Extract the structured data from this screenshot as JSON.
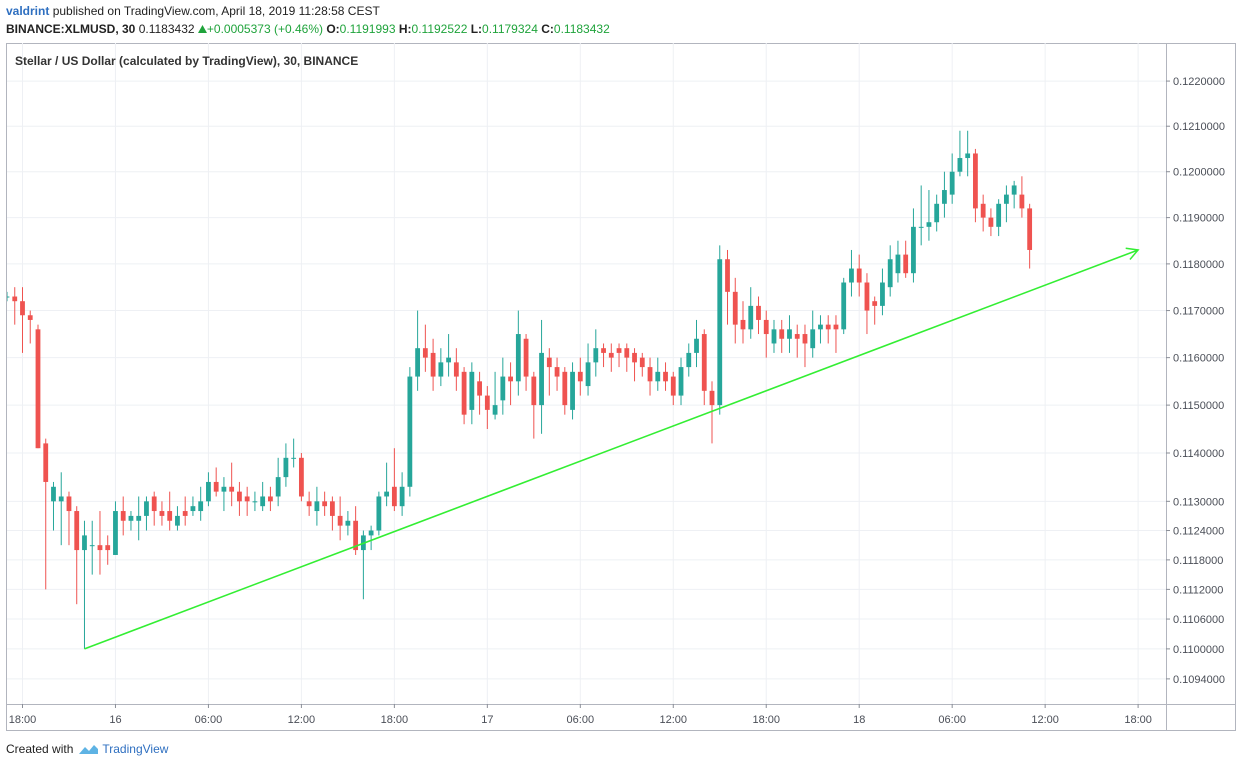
{
  "header": {
    "author": "valdrint",
    "published": "published on TradingView.com, April 18, 2019 11:28:58 CEST",
    "symbol": "BINANCE:XLMUSD, 30",
    "last": "0.1183432",
    "change": "+0.0005373 (+0.46%)",
    "ohlc": [
      {
        "label": "O:",
        "value": "0.1191993"
      },
      {
        "label": "H:",
        "value": "0.1192522"
      },
      {
        "label": "L:",
        "value": "0.1179324"
      },
      {
        "label": "C:",
        "value": "0.1183432"
      }
    ]
  },
  "footer": {
    "created": "Created with",
    "brand": "TradingView"
  },
  "chart_data": {
    "type": "candlestick",
    "title": "Stellar / US Dollar (calculated by TradingView), 30, BINANCE",
    "up_color": "#26a69a",
    "down_color": "#ef5350",
    "log_scale": true,
    "grid": true,
    "xlim": [
      0,
      149.6
    ],
    "ylim": [
      0.1089,
      0.12285
    ],
    "xticks": [
      {
        "value": 2,
        "label": "18:00"
      },
      {
        "value": 14,
        "label": "16"
      },
      {
        "value": 26,
        "label": "06:00"
      },
      {
        "value": 38,
        "label": "12:00"
      },
      {
        "value": 50,
        "label": "18:00"
      },
      {
        "value": 62,
        "label": "17"
      },
      {
        "value": 74,
        "label": "06:00"
      },
      {
        "value": 86,
        "label": "12:00"
      },
      {
        "value": 98,
        "label": "18:00"
      },
      {
        "value": 110,
        "label": "18"
      },
      {
        "value": 122,
        "label": "06:00"
      },
      {
        "value": 134,
        "label": "12:00"
      },
      {
        "value": 146,
        "label": "18:00"
      }
    ],
    "yticks": [
      {
        "value": 0.122,
        "label": "0.1220000"
      },
      {
        "value": 0.121,
        "label": "0.1210000"
      },
      {
        "value": 0.12,
        "label": "0.1200000"
      },
      {
        "value": 0.119,
        "label": "0.1190000"
      },
      {
        "value": 0.118,
        "label": "0.1180000"
      },
      {
        "value": 0.117,
        "label": "0.1170000"
      },
      {
        "value": 0.116,
        "label": "0.1160000"
      },
      {
        "value": 0.115,
        "label": "0.1150000"
      },
      {
        "value": 0.114,
        "label": "0.1140000"
      },
      {
        "value": 0.113,
        "label": "0.1130000"
      },
      {
        "value": 0.1124,
        "label": "0.1124000"
      },
      {
        "value": 0.1118,
        "label": "0.1118000"
      },
      {
        "value": 0.1112,
        "label": "0.1112000"
      },
      {
        "value": 0.1106,
        "label": "0.1106000"
      },
      {
        "value": 0.11,
        "label": "0.1100000"
      },
      {
        "value": 0.1094,
        "label": "0.1094000"
      }
    ],
    "open": [
      0.1173,
      0.1173,
      0.1172,
      0.1169,
      0.1166,
      0.1142,
      0.113,
      0.113,
      0.1131,
      0.1128,
      0.112,
      0.1121,
      0.1121,
      0.1121,
      0.1119,
      0.1128,
      0.1126,
      0.1126,
      0.1127,
      0.1131,
      0.1128,
      0.1128,
      0.1125,
      0.1128,
      0.1128,
      0.1128,
      0.113,
      0.1134,
      0.1132,
      0.1133,
      0.1132,
      0.1131,
      0.113,
      0.1129,
      0.1131,
      0.1131,
      0.1135,
      0.1139,
      0.1139,
      0.113,
      0.1128,
      0.113,
      0.113,
      0.1127,
      0.1125,
      0.1126,
      0.112,
      0.1123,
      0.1124,
      0.1131,
      0.1133,
      0.1129,
      0.1133,
      0.1156,
      0.1162,
      0.1161,
      0.1156,
      0.1159,
      0.1159,
      0.1157,
      0.1149,
      0.1155,
      0.1152,
      0.1148,
      0.1151,
      0.1156,
      0.1155,
      0.1164,
      0.1156,
      0.115,
      0.116,
      0.1158,
      0.1157,
      0.1149,
      0.1157,
      0.1154,
      0.1159,
      0.1162,
      0.1161,
      0.1162,
      0.1162,
      0.1161,
      0.116,
      0.1158,
      0.1155,
      0.1157,
      0.1156,
      0.1152,
      0.1158,
      0.1161,
      0.1165,
      0.1153,
      0.115,
      0.1181,
      0.1174,
      0.1168,
      0.1166,
      0.1171,
      0.1168,
      0.1163,
      0.1166,
      0.1164,
      0.1165,
      0.1165,
      0.1162,
      0.1166,
      0.1167,
      0.1167,
      0.1166,
      0.1176,
      0.1179,
      0.1176,
      0.1172,
      0.1171,
      0.1175,
      0.1178,
      0.1182,
      0.1178,
      0.1188,
      0.1188,
      0.1189,
      0.1193,
      0.1195,
      0.12,
      0.1203,
      0.1204,
      0.1193,
      0.119,
      0.1188,
      0.1193,
      0.1195,
      0.1195,
      0.1192
    ],
    "high": [
      0.1174,
      0.1175,
      0.1175,
      0.117,
      0.1167,
      0.1143,
      0.1134,
      0.1136,
      0.1132,
      0.1129,
      0.1126,
      0.1126,
      0.1128,
      0.1123,
      0.113,
      0.1131,
      0.1128,
      0.1131,
      0.1131,
      0.1132,
      0.113,
      0.1132,
      0.1129,
      0.1131,
      0.1131,
      0.1133,
      0.1136,
      0.1137,
      0.1135,
      0.1138,
      0.1134,
      0.1133,
      0.1132,
      0.1134,
      0.1133,
      0.1139,
      0.1142,
      0.1143,
      0.114,
      0.1132,
      0.1133,
      0.1132,
      0.1131,
      0.1131,
      0.1128,
      0.1129,
      0.1124,
      0.1125,
      0.1132,
      0.1138,
      0.1141,
      0.1136,
      0.1158,
      0.117,
      0.1167,
      0.1164,
      0.1162,
      0.1165,
      0.1162,
      0.1158,
      0.1159,
      0.1157,
      0.1154,
      0.1157,
      0.116,
      0.1159,
      0.117,
      0.1165,
      0.1157,
      0.1168,
      0.1162,
      0.116,
      0.1158,
      0.1159,
      0.116,
      0.1163,
      0.1166,
      0.1163,
      0.1163,
      0.1163,
      0.1163,
      0.1162,
      0.1161,
      0.116,
      0.116,
      0.1159,
      0.1157,
      0.116,
      0.1163,
      0.1168,
      0.1166,
      0.1155,
      0.1184,
      0.1183,
      0.1177,
      0.1172,
      0.1175,
      0.1173,
      0.117,
      0.1168,
      0.1168,
      0.1169,
      0.1167,
      0.1167,
      0.117,
      0.1169,
      0.1169,
      0.1169,
      0.1177,
      0.1183,
      0.1182,
      0.1178,
      0.1173,
      0.1179,
      0.1184,
      0.1185,
      0.1185,
      0.1192,
      0.1197,
      0.1196,
      0.1195,
      0.12,
      0.1204,
      0.1209,
      0.1209,
      0.1205,
      0.1195,
      0.1192,
      0.1194,
      0.1197,
      0.1198,
      0.1199,
      0.1193
    ],
    "low": [
      0.1172,
      0.1167,
      0.1161,
      0.1163,
      0.1141,
      0.1112,
      0.1124,
      0.1121,
      0.1121,
      0.1109,
      0.11,
      0.1115,
      0.1115,
      0.1117,
      0.1119,
      0.1123,
      0.1124,
      0.1122,
      0.1124,
      0.1125,
      0.1125,
      0.1124,
      0.1124,
      0.1125,
      0.1127,
      0.1126,
      0.1129,
      0.1131,
      0.1128,
      0.1129,
      0.1127,
      0.1127,
      0.1128,
      0.1128,
      0.1128,
      0.1129,
      0.1133,
      0.1137,
      0.113,
      0.1127,
      0.1125,
      0.1127,
      0.1124,
      0.1122,
      0.1123,
      0.1119,
      0.111,
      0.112,
      0.1123,
      0.1129,
      0.1128,
      0.1127,
      0.1131,
      0.1153,
      0.1157,
      0.1153,
      0.1154,
      0.1156,
      0.1153,
      0.1146,
      0.1146,
      0.1148,
      0.1145,
      0.1147,
      0.1148,
      0.115,
      0.1152,
      0.1153,
      0.1143,
      0.1144,
      0.1152,
      0.1153,
      0.1148,
      0.1147,
      0.1152,
      0.1152,
      0.1156,
      0.1158,
      0.1157,
      0.1158,
      0.1157,
      0.1155,
      0.1156,
      0.1152,
      0.1153,
      0.1153,
      0.115,
      0.115,
      0.1156,
      0.1158,
      0.115,
      0.1142,
      0.1148,
      0.1167,
      0.1163,
      0.1163,
      0.1164,
      0.1165,
      0.116,
      0.1161,
      0.1161,
      0.1161,
      0.116,
      0.1158,
      0.116,
      0.1163,
      0.1163,
      0.1161,
      0.1165,
      0.1173,
      0.1173,
      0.1165,
      0.1167,
      0.1169,
      0.1173,
      0.1176,
      0.1177,
      0.1176,
      0.1184,
      0.1185,
      0.1187,
      0.119,
      0.1193,
      0.1199,
      0.1199,
      0.1189,
      0.1187,
      0.1186,
      0.1186,
      0.1189,
      0.1192,
      0.119,
      0.1179
    ],
    "close": [
      0.1173,
      0.1172,
      0.1169,
      0.1168,
      0.1141,
      0.1134,
      0.1133,
      0.1131,
      0.1128,
      0.112,
      0.1123,
      0.1121,
      0.112,
      0.112,
      0.1128,
      0.1126,
      0.1127,
      0.1127,
      0.113,
      0.1128,
      0.1127,
      0.1126,
      0.1127,
      0.1127,
      0.1129,
      0.113,
      0.1134,
      0.1132,
      0.1133,
      0.1132,
      0.113,
      0.113,
      0.113,
      0.1131,
      0.113,
      0.1135,
      0.1139,
      0.1139,
      0.1131,
      0.1129,
      0.113,
      0.1129,
      0.1127,
      0.1125,
      0.1126,
      0.112,
      0.1123,
      0.1124,
      0.1131,
      0.1132,
      0.1129,
      0.1133,
      0.1156,
      0.1162,
      0.116,
      0.1156,
      0.1159,
      0.116,
      0.1156,
      0.1148,
      0.1157,
      0.1152,
      0.1149,
      0.115,
      0.1156,
      0.1155,
      0.1165,
      0.1156,
      0.115,
      0.1161,
      0.1158,
      0.1156,
      0.115,
      0.1157,
      0.1155,
      0.1159,
      0.1162,
      0.1161,
      0.116,
      0.1161,
      0.116,
      0.1159,
      0.1158,
      0.1155,
      0.1157,
      0.1155,
      0.1152,
      0.1158,
      0.1161,
      0.1164,
      0.1153,
      0.115,
      0.1181,
      0.1174,
      0.1167,
      0.1166,
      0.1171,
      0.1168,
      0.1165,
      0.1166,
      0.1164,
      0.1166,
      0.1164,
      0.1163,
      0.1166,
      0.1167,
      0.1166,
      0.1166,
      0.1176,
      0.1179,
      0.1176,
      0.117,
      0.1171,
      0.1176,
      0.1181,
      0.1182,
      0.1178,
      0.1188,
      0.1188,
      0.1189,
      0.1193,
      0.1196,
      0.12,
      0.1203,
      0.1204,
      0.1192,
      0.119,
      0.1188,
      0.1193,
      0.1195,
      0.1197,
      0.1192,
      0.1183
    ],
    "trendline": {
      "x": [
        10,
        146
      ],
      "y": [
        0.11,
        0.1183
      ],
      "color": "#33ee33"
    }
  }
}
